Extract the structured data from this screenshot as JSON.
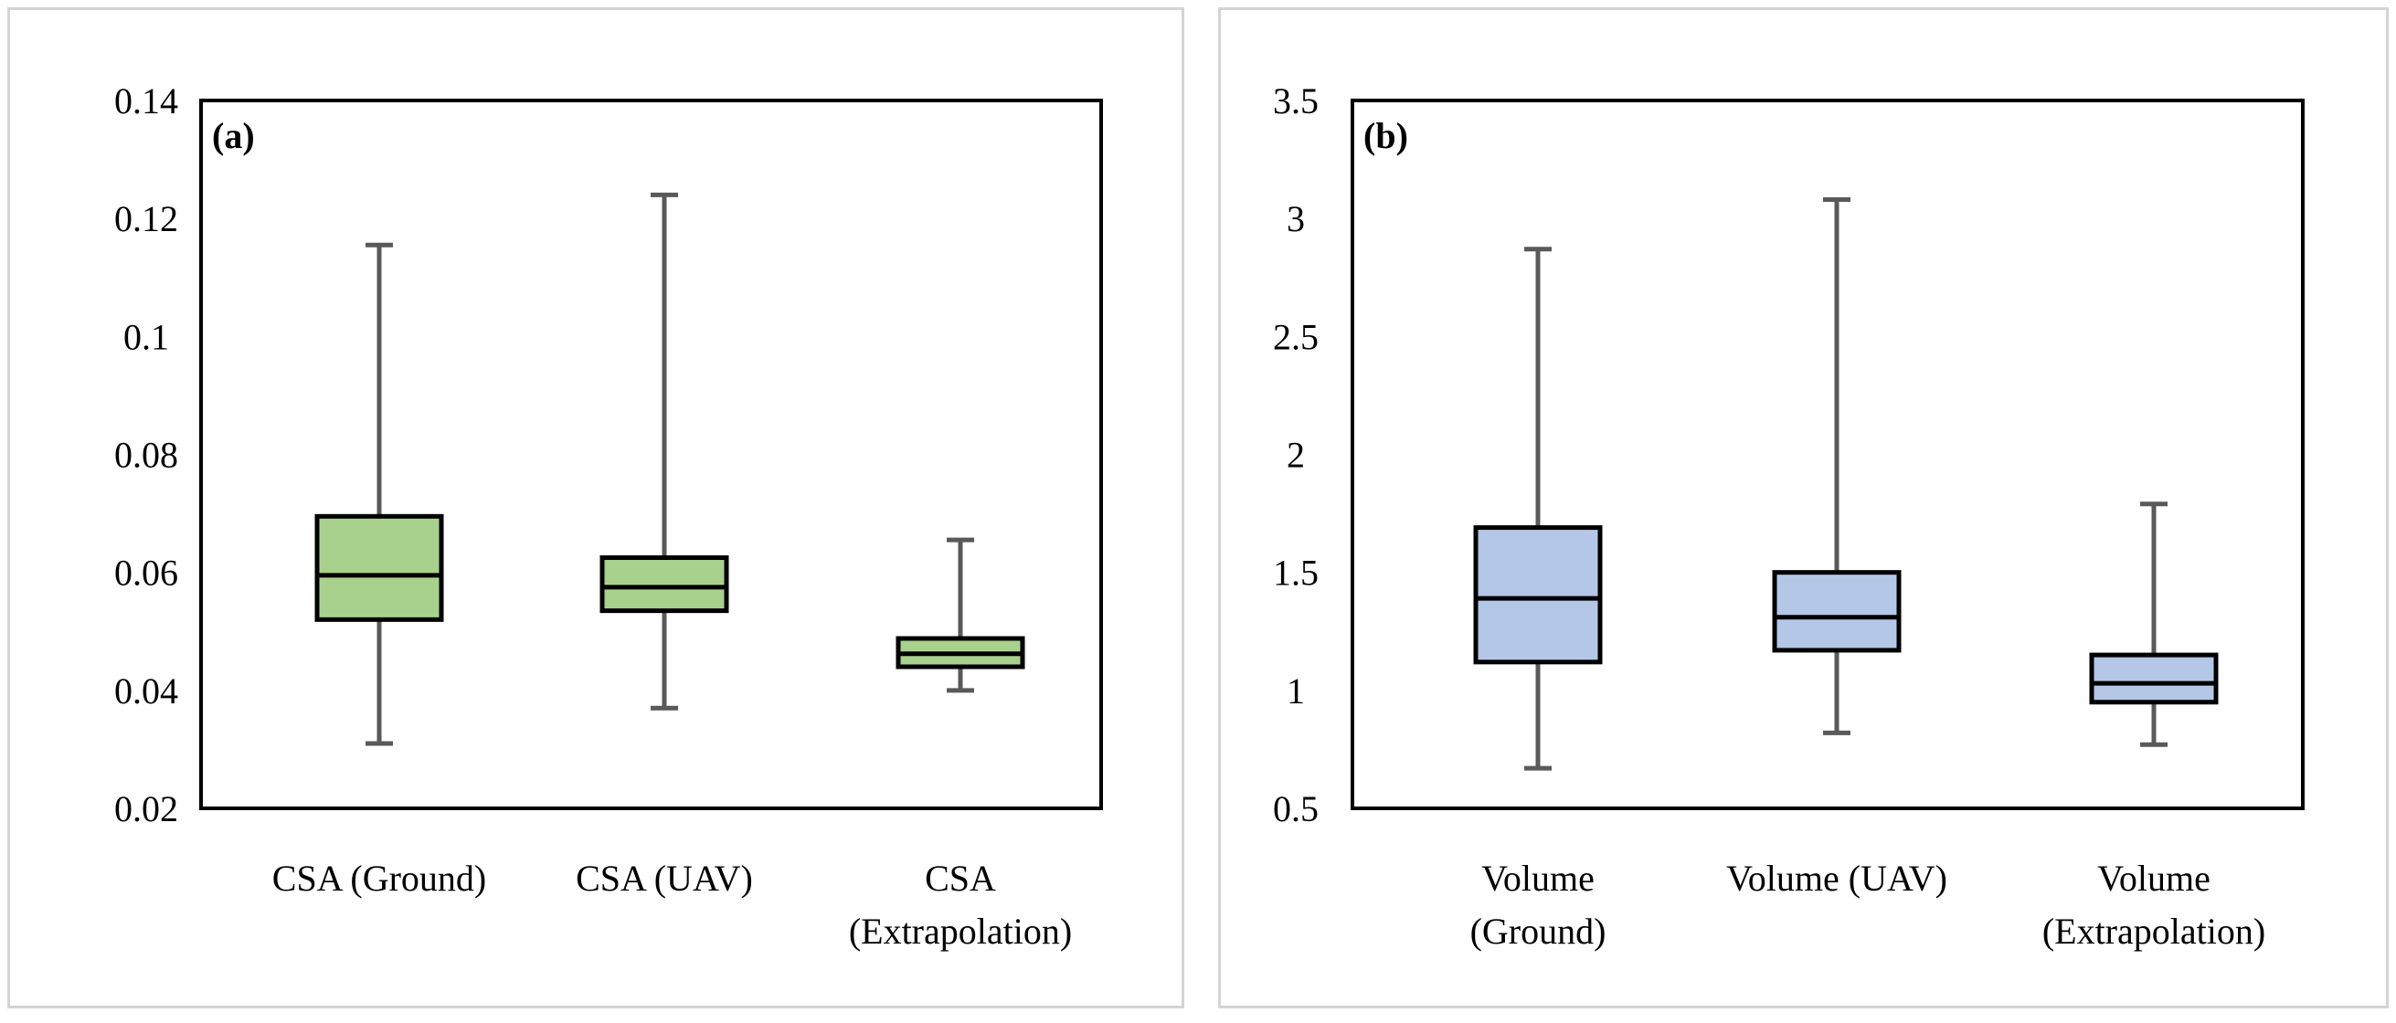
{
  "chart_data": [
    {
      "type": "box",
      "panel_label": "(a)",
      "ylim": [
        0.02,
        0.14
      ],
      "y_ticks": [
        "0.02",
        "0.04",
        "0.06",
        "0.08",
        "0.1",
        "0.12",
        "0.14"
      ],
      "categories": [
        [
          "CSA (Ground)"
        ],
        [
          "CSA (UAV)"
        ],
        [
          "CSA",
          "(Extrapolation)"
        ]
      ],
      "boxes": [
        {
          "min": 0.031,
          "q1": 0.052,
          "median": 0.0595,
          "q3": 0.0695,
          "max": 0.1155
        },
        {
          "min": 0.037,
          "q1": 0.0535,
          "median": 0.0575,
          "q3": 0.0625,
          "max": 0.124
        },
        {
          "min": 0.04,
          "q1": 0.044,
          "median": 0.0462,
          "q3": 0.0488,
          "max": 0.0655
        }
      ],
      "box_color": "#a9d18e",
      "grid": false
    },
    {
      "type": "box",
      "panel_label": "(b)",
      "ylim": [
        0.5,
        3.5
      ],
      "y_ticks": [
        "0.5",
        "1",
        "1.5",
        "2",
        "2.5",
        "3",
        "3.5"
      ],
      "categories": [
        [
          "Volume",
          "(Ground)"
        ],
        [
          "Volume (UAV)"
        ],
        [
          "Volume",
          "(Extrapolation)"
        ]
      ],
      "boxes": [
        {
          "min": 0.67,
          "q1": 1.12,
          "median": 1.39,
          "q3": 1.69,
          "max": 2.87
        },
        {
          "min": 0.82,
          "q1": 1.17,
          "median": 1.31,
          "q3": 1.5,
          "max": 3.08
        },
        {
          "min": 0.77,
          "q1": 0.95,
          "median": 1.03,
          "q3": 1.15,
          "max": 1.79
        }
      ],
      "box_color": "#b4c7e7",
      "grid": false
    }
  ]
}
